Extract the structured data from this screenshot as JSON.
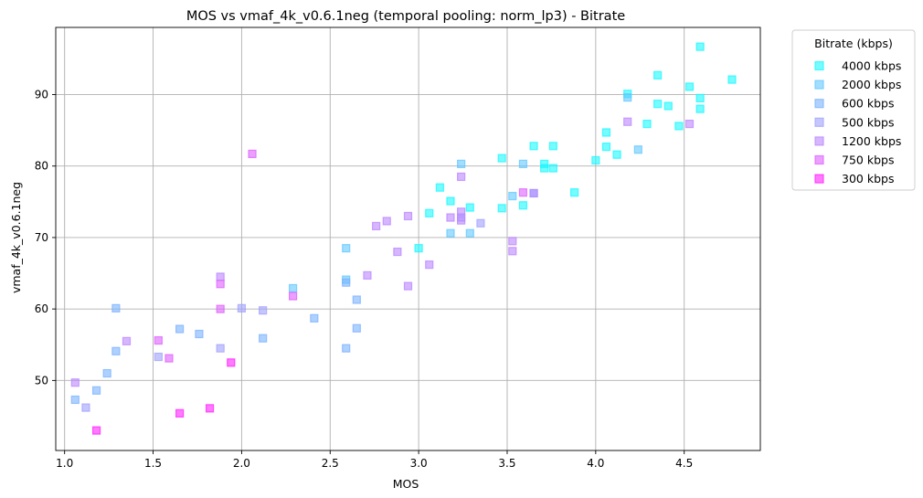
{
  "chart_data": {
    "type": "scatter",
    "title": "MOS vs vmaf_4k_v0.6.1neg (temporal pooling: norm_lp3) - Bitrate",
    "xlabel": "MOS",
    "ylabel": "vmaf_4k_v0.6.1neg",
    "xlim": [
      0.95,
      4.93
    ],
    "ylim": [
      40.2,
      99.4
    ],
    "x_ticks": [
      1.0,
      1.5,
      2.0,
      2.5,
      3.0,
      3.5,
      4.0,
      4.5
    ],
    "x_tick_labels": [
      "1.0",
      "1.5",
      "2.0",
      "2.5",
      "3.0",
      "3.5",
      "4.0",
      "4.5"
    ],
    "y_ticks": [
      50,
      60,
      70,
      80,
      90
    ],
    "y_tick_labels": [
      "50",
      "60",
      "70",
      "80",
      "90"
    ],
    "grid": true,
    "marker": "square",
    "legend": {
      "title": "Bitrate (kbps)",
      "placement": "outside-top-right"
    },
    "series": [
      {
        "name": "4000 kbps",
        "color": "#1af8ff",
        "points": [
          [
            4.59,
            96.7
          ],
          [
            4.35,
            92.7
          ],
          [
            4.77,
            92.1
          ],
          [
            4.53,
            91.1
          ],
          [
            4.18,
            90.1
          ],
          [
            4.59,
            89.5
          ],
          [
            4.35,
            88.7
          ],
          [
            4.41,
            88.4
          ],
          [
            4.59,
            88.0
          ],
          [
            4.29,
            85.9
          ],
          [
            4.47,
            85.6
          ],
          [
            4.06,
            84.7
          ],
          [
            3.65,
            82.8
          ],
          [
            3.76,
            82.8
          ],
          [
            4.06,
            82.7
          ],
          [
            4.12,
            81.6
          ],
          [
            3.47,
            81.1
          ],
          [
            4.0,
            80.8
          ],
          [
            3.71,
            80.3
          ],
          [
            3.71,
            79.7
          ],
          [
            3.76,
            79.7
          ],
          [
            3.88,
            76.3
          ],
          [
            3.12,
            77.0
          ],
          [
            3.29,
            74.2
          ],
          [
            3.47,
            74.1
          ],
          [
            3.59,
            74.5
          ],
          [
            3.06,
            73.4
          ],
          [
            3.0,
            68.5
          ],
          [
            3.18,
            75.1
          ]
        ]
      },
      {
        "name": "2000 kbps",
        "color": "#62c8ff",
        "points": [
          [
            4.18,
            89.6
          ],
          [
            4.24,
            82.3
          ],
          [
            3.59,
            80.3
          ],
          [
            3.24,
            80.3
          ],
          [
            3.18,
            70.6
          ],
          [
            3.29,
            70.6
          ],
          [
            3.53,
            75.8
          ],
          [
            2.59,
            68.5
          ],
          [
            2.59,
            64.1
          ],
          [
            2.29,
            62.9
          ]
        ]
      },
      {
        "name": "600 kbps",
        "color": "#7ab2ff",
        "points": [
          [
            1.29,
            60.1
          ],
          [
            1.65,
            57.2
          ],
          [
            1.76,
            56.5
          ],
          [
            2.12,
            55.9
          ],
          [
            2.41,
            58.7
          ],
          [
            2.59,
            63.7
          ],
          [
            2.65,
            61.3
          ],
          [
            2.65,
            57.3
          ],
          [
            2.59,
            54.5
          ],
          [
            1.29,
            54.1
          ],
          [
            1.24,
            51.0
          ],
          [
            1.18,
            48.6
          ],
          [
            1.06,
            47.3
          ],
          [
            3.65,
            76.2
          ]
        ]
      },
      {
        "name": "500 kbps",
        "color": "#a0a0ff",
        "points": [
          [
            1.12,
            46.2
          ],
          [
            1.53,
            53.3
          ],
          [
            1.88,
            54.5
          ],
          [
            2.0,
            60.1
          ],
          [
            2.12,
            59.8
          ],
          [
            3.35,
            72.0
          ],
          [
            3.24,
            72.8
          ]
        ]
      },
      {
        "name": "1200 kbps",
        "color": "#bb85ff",
        "points": [
          [
            1.06,
            49.7
          ],
          [
            1.35,
            55.5
          ],
          [
            1.88,
            64.5
          ],
          [
            2.71,
            64.7
          ],
          [
            2.76,
            71.6
          ],
          [
            2.82,
            72.3
          ],
          [
            2.88,
            68.0
          ],
          [
            2.94,
            73.0
          ],
          [
            2.94,
            63.2
          ],
          [
            3.06,
            66.2
          ],
          [
            3.18,
            72.8
          ],
          [
            3.24,
            72.4
          ],
          [
            3.24,
            73.6
          ],
          [
            3.24,
            78.5
          ],
          [
            3.53,
            69.5
          ],
          [
            3.53,
            68.1
          ],
          [
            4.18,
            86.2
          ],
          [
            4.53,
            85.9
          ],
          [
            3.65,
            76.2
          ]
        ]
      },
      {
        "name": "750 kbps",
        "color": "#dd60ff",
        "points": [
          [
            2.06,
            81.7
          ],
          [
            1.88,
            63.5
          ],
          [
            1.88,
            60.0
          ],
          [
            1.53,
            55.6
          ],
          [
            1.59,
            53.1
          ],
          [
            2.29,
            61.8
          ],
          [
            3.59,
            76.3
          ]
        ]
      },
      {
        "name": "300 kbps",
        "color": "#ff22ff",
        "points": [
          [
            1.18,
            43.0
          ],
          [
            1.65,
            45.4
          ],
          [
            1.82,
            46.1
          ],
          [
            1.94,
            52.5
          ]
        ]
      }
    ]
  }
}
